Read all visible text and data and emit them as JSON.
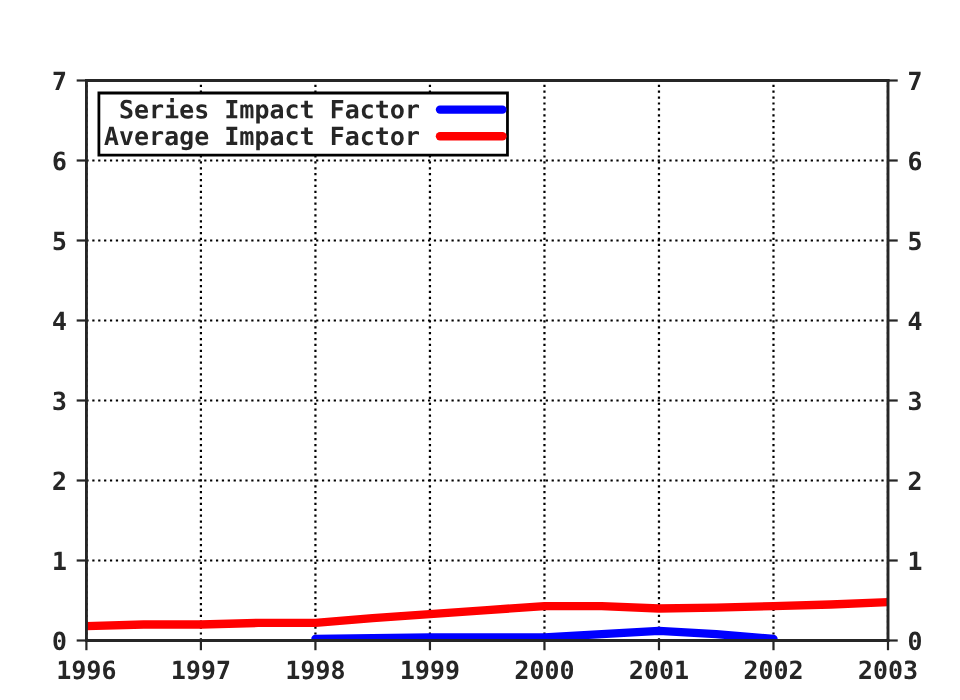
{
  "chart_data": {
    "type": "line",
    "x": [
      1996,
      1996.5,
      1997,
      1997.5,
      1998,
      1998.5,
      1999,
      1999.5,
      2000,
      2000.5,
      2001,
      2001.5,
      2002,
      2002.5,
      2003
    ],
    "series": [
      {
        "name": "Series Impact Factor",
        "color": "#0000ff",
        "values": [
          null,
          null,
          null,
          null,
          0.02,
          0.03,
          0.04,
          0.04,
          0.04,
          0.08,
          0.12,
          0.08,
          0.02,
          null,
          null
        ]
      },
      {
        "name": "Average Impact Factor",
        "color": "#ff0000",
        "values": [
          0.18,
          0.2,
          0.2,
          0.22,
          0.22,
          0.28,
          0.33,
          0.38,
          0.43,
          0.43,
          0.4,
          0.41,
          0.43,
          0.45,
          0.48
        ]
      }
    ],
    "xlim": [
      1996,
      2003
    ],
    "xticks": [
      1996,
      1997,
      1998,
      1999,
      2000,
      2001,
      2002,
      2003
    ],
    "ylim": [
      0,
      7
    ],
    "yticks": [
      0,
      1,
      2,
      3,
      4,
      5,
      6,
      7
    ],
    "y2lim": [
      0,
      7
    ],
    "y2ticks": [
      0,
      1,
      2,
      3,
      4,
      5,
      6,
      7
    ],
    "grid": true,
    "legend": "top left",
    "line_style": "solid",
    "marker": "none"
  }
}
